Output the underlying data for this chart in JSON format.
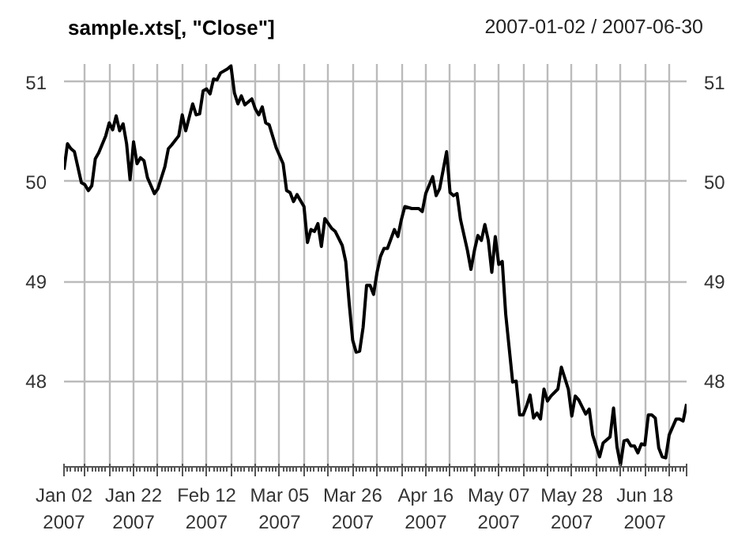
{
  "chart_data": {
    "type": "line",
    "title": "sample.xts[, \"Close\"]",
    "subtitle": "2007-01-02 / 2007-06-30",
    "x": [
      "2007-01-02",
      "2007-01-03",
      "2007-01-04",
      "2007-01-05",
      "2007-01-07",
      "2007-01-08",
      "2007-01-09",
      "2007-01-10",
      "2007-01-11",
      "2007-01-12",
      "2007-01-14",
      "2007-01-15",
      "2007-01-16",
      "2007-01-17",
      "2007-01-18",
      "2007-01-19",
      "2007-01-20",
      "2007-01-21",
      "2007-01-22",
      "2007-01-23",
      "2007-01-24",
      "2007-01-25",
      "2007-01-26",
      "2007-01-27",
      "2007-01-28",
      "2007-01-29",
      "2007-01-31",
      "2007-02-01",
      "2007-02-02",
      "2007-02-04",
      "2007-02-05",
      "2007-02-06",
      "2007-02-08",
      "2007-02-09",
      "2007-02-10",
      "2007-02-11",
      "2007-02-12",
      "2007-02-13",
      "2007-02-14",
      "2007-02-15",
      "2007-02-16",
      "2007-02-18",
      "2007-02-19",
      "2007-02-20",
      "2007-02-21",
      "2007-02-22",
      "2007-02-23",
      "2007-02-25",
      "2007-02-26",
      "2007-02-27",
      "2007-02-28",
      "2007-03-01",
      "2007-03-02",
      "2007-03-04",
      "2007-03-06",
      "2007-03-07",
      "2007-03-08",
      "2007-03-09",
      "2007-03-10",
      "2007-03-12",
      "2007-03-13",
      "2007-03-14",
      "2007-03-15",
      "2007-03-16",
      "2007-03-17",
      "2007-03-18",
      "2007-03-20",
      "2007-03-21",
      "2007-03-23",
      "2007-03-24",
      "2007-03-25",
      "2007-03-26",
      "2007-03-27",
      "2007-03-28",
      "2007-03-29",
      "2007-03-30",
      "2007-03-31",
      "2007-04-01",
      "2007-04-02",
      "2007-04-03",
      "2007-04-04",
      "2007-04-05",
      "2007-04-07",
      "2007-04-08",
      "2007-04-09",
      "2007-04-10",
      "2007-04-12",
      "2007-04-14",
      "2007-04-15",
      "2007-04-16",
      "2007-04-18",
      "2007-04-19",
      "2007-04-20",
      "2007-04-22",
      "2007-04-23",
      "2007-04-24",
      "2007-04-25",
      "2007-04-26",
      "2007-04-28",
      "2007-04-29",
      "2007-04-30",
      "2007-05-01",
      "2007-05-02",
      "2007-05-03",
      "2007-05-04",
      "2007-05-05",
      "2007-05-06",
      "2007-05-07",
      "2007-05-08",
      "2007-05-09",
      "2007-05-11",
      "2007-05-12",
      "2007-05-13",
      "2007-05-14",
      "2007-05-15",
      "2007-05-16",
      "2007-05-17",
      "2007-05-18",
      "2007-05-19",
      "2007-05-20",
      "2007-05-21",
      "2007-05-22",
      "2007-05-24",
      "2007-05-25",
      "2007-05-27",
      "2007-05-28",
      "2007-05-29",
      "2007-05-30",
      "2007-06-01",
      "2007-06-02",
      "2007-06-03",
      "2007-06-05",
      "2007-06-06",
      "2007-06-08",
      "2007-06-09",
      "2007-06-10",
      "2007-06-11",
      "2007-06-12",
      "2007-06-13",
      "2007-06-14",
      "2007-06-15",
      "2007-06-16",
      "2007-06-17",
      "2007-06-18",
      "2007-06-19",
      "2007-06-20",
      "2007-06-21",
      "2007-06-22",
      "2007-06-23",
      "2007-06-24",
      "2007-06-25",
      "2007-06-27",
      "2007-06-28",
      "2007-06-29",
      "2007-06-30"
    ],
    "series": [
      {
        "color": "#000000",
        "values": [
          50.12,
          50.38,
          50.33,
          50.3,
          49.99,
          49.97,
          49.91,
          49.96,
          50.23,
          50.29,
          50.46,
          50.59,
          50.52,
          50.66,
          50.51,
          50.58,
          50.38,
          50.02,
          50.4,
          50.18,
          50.24,
          50.21,
          50.04,
          49.96,
          49.88,
          49.93,
          50.15,
          50.33,
          50.37,
          50.46,
          50.67,
          50.51,
          50.78,
          50.67,
          50.68,
          50.91,
          50.93,
          50.88,
          51.03,
          51.02,
          51.09,
          51.13,
          51.16,
          50.89,
          50.78,
          50.86,
          50.77,
          50.83,
          50.73,
          50.67,
          50.75,
          50.59,
          50.57,
          50.34,
          50.18,
          49.91,
          49.89,
          49.8,
          49.87,
          49.75,
          49.39,
          49.52,
          49.5,
          49.58,
          49.35,
          49.63,
          49.53,
          49.5,
          49.36,
          49.2,
          48.78,
          48.41,
          48.29,
          48.3,
          48.54,
          48.96,
          48.96,
          48.87,
          49.09,
          49.25,
          49.33,
          49.33,
          49.52,
          49.45,
          49.62,
          49.75,
          49.73,
          49.73,
          49.7,
          49.88,
          50.05,
          49.86,
          49.93,
          50.3,
          49.89,
          49.86,
          49.88,
          49.62,
          49.31,
          49.12,
          49.31,
          49.46,
          49.41,
          49.57,
          49.41,
          49.09,
          49.45,
          49.17,
          49.2,
          48.67,
          47.99,
          48.0,
          47.66,
          47.66,
          47.75,
          47.86,
          47.63,
          47.68,
          47.62,
          47.92,
          47.8,
          47.85,
          47.92,
          48.14,
          47.92,
          47.65,
          47.85,
          47.81,
          47.67,
          47.72,
          47.46,
          47.24,
          47.38,
          47.44,
          47.73,
          47.34,
          47.16,
          47.4,
          47.41,
          47.35,
          47.35,
          47.28,
          47.37,
          47.36,
          47.66,
          47.66,
          47.63,
          47.33,
          47.24,
          47.23,
          47.46,
          47.62,
          47.62,
          47.6,
          47.77
        ]
      }
    ],
    "xlim": [
      "2007-01-02",
      "2007-06-30"
    ],
    "xticks": [
      {
        "value": "2007-01-02",
        "label": "Jan 02\n2007"
      },
      {
        "value": "2007-01-08",
        "label": null
      },
      {
        "value": "2007-01-15",
        "label": null
      },
      {
        "value": "2007-01-22",
        "label": "Jan 22\n2007"
      },
      {
        "value": "2007-01-29",
        "label": null
      },
      {
        "value": "2007-02-05",
        "label": null
      },
      {
        "value": "2007-02-12",
        "label": "Feb 12\n2007"
      },
      {
        "value": "2007-02-19",
        "label": null
      },
      {
        "value": "2007-02-26",
        "label": null
      },
      {
        "value": "2007-03-05",
        "label": "Mar 05\n2007"
      },
      {
        "value": "2007-03-12",
        "label": null
      },
      {
        "value": "2007-03-19",
        "label": null
      },
      {
        "value": "2007-03-26",
        "label": "Mar 26\n2007"
      },
      {
        "value": "2007-04-02",
        "label": null
      },
      {
        "value": "2007-04-09",
        "label": null
      },
      {
        "value": "2007-04-16",
        "label": "Apr 16\n2007"
      },
      {
        "value": "2007-04-23",
        "label": null
      },
      {
        "value": "2007-04-30",
        "label": null
      },
      {
        "value": "2007-05-07",
        "label": "May 07\n2007"
      },
      {
        "value": "2007-05-14",
        "label": null
      },
      {
        "value": "2007-05-21",
        "label": null
      },
      {
        "value": "2007-05-28",
        "label": "May 28\n2007"
      },
      {
        "value": "2007-06-04",
        "label": null
      },
      {
        "value": "2007-06-11",
        "label": null
      },
      {
        "value": "2007-06-18",
        "label": "Jun 18\n2007"
      },
      {
        "value": "2007-06-25",
        "label": null
      },
      {
        "value": "2007-06-30",
        "label": null
      }
    ],
    "ylim": [
      47.14,
      51.18
    ],
    "yticks": [
      48,
      49,
      50,
      51
    ],
    "y2lim": [
      47.14,
      51.18
    ],
    "y2ticks": [
      48,
      49,
      50,
      51
    ],
    "grid": true,
    "line_style": "solid",
    "marker": "none"
  }
}
